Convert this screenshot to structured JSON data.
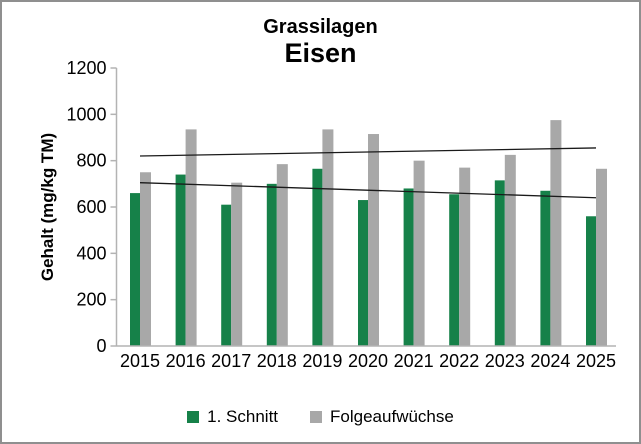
{
  "chart_data": {
    "type": "bar",
    "title": "Grassilagen",
    "subtitle": "Eisen",
    "ylabel": "Gehalt (mg/kg TM)",
    "xlabel": "",
    "categories": [
      "2015",
      "2016",
      "2017",
      "2018",
      "2019",
      "2020",
      "2021",
      "2022",
      "2023",
      "2024",
      "2025"
    ],
    "series": [
      {
        "name": "1. Schnitt",
        "color": "#168149",
        "values": [
          660,
          740,
          610,
          700,
          765,
          630,
          680,
          655,
          715,
          670,
          560
        ]
      },
      {
        "name": "Folgeaufwüchse",
        "color": "#a8a8a8",
        "values": [
          750,
          935,
          705,
          785,
          935,
          915,
          800,
          770,
          825,
          975,
          765
        ]
      }
    ],
    "trendlines": [
      {
        "series": "1. Schnitt",
        "type": "linear",
        "start_value": 705,
        "end_value": 640,
        "color": "#1a1a1a"
      },
      {
        "series": "Folgeaufwüchse",
        "type": "linear",
        "start_value": 820,
        "end_value": 855,
        "color": "#1a1a1a"
      }
    ],
    "ylim": [
      0,
      1200
    ],
    "yticks": [
      0,
      200,
      400,
      600,
      800,
      1000,
      1200
    ],
    "grid": false,
    "legend_position": "bottom",
    "axis_color": "#b3b3b3",
    "text_color": "#000000"
  }
}
